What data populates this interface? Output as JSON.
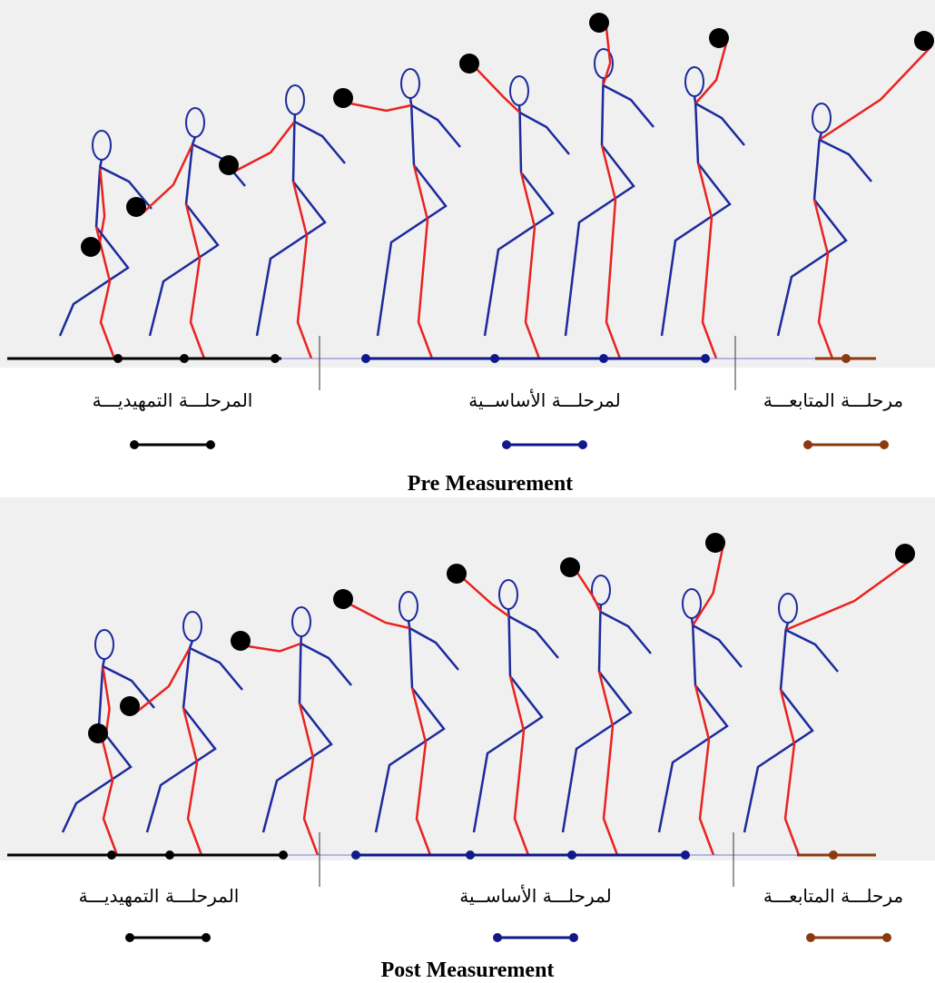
{
  "panels": [
    {
      "caption": "Pre Measurement",
      "phases": [
        {
          "label": "المرحلـــة التمهيديـــة"
        },
        {
          "label": "لمرحلـــة الأساســية"
        },
        {
          "label": "مرحلـــة المتابعـــة"
        }
      ]
    },
    {
      "caption": "Post Measurement",
      "phases": [
        {
          "label": "المرحلـــة التمهيديـــة"
        },
        {
          "label": "لمرحلـــة الأساســية"
        },
        {
          "label": "مرحلـــة المتابعـــة"
        }
      ]
    }
  ]
}
